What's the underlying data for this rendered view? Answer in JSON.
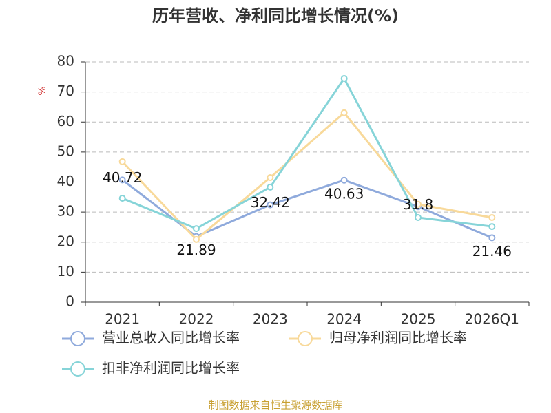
{
  "chart_data": {
    "type": "line",
    "title": "历年营收、净利同比增长情况(%)",
    "y_label": "%",
    "categories": [
      "2021",
      "2022",
      "2023",
      "2024",
      "2025",
      "2026Q1"
    ],
    "series": [
      {
        "name": "营业总收入同比增长率",
        "color": "#8faadc",
        "values": [
          40.72,
          21.89,
          32.42,
          40.63,
          31.8,
          21.46
        ],
        "show_labels": true
      },
      {
        "name": "归母净利润同比增长率",
        "color": "#f8d99a",
        "values": [
          46.8,
          20.9,
          41.5,
          63.1,
          32.6,
          28.2
        ],
        "show_labels": false
      },
      {
        "name": "扣非净利润同比增长率",
        "color": "#86d4d8",
        "values": [
          34.6,
          24.5,
          38.3,
          74.5,
          28.2,
          25.2
        ],
        "show_labels": false
      }
    ],
    "ylim": [
      0,
      80
    ],
    "yticks": [
      0,
      10,
      20,
      30,
      40,
      50,
      60,
      70,
      80
    ],
    "grid": true,
    "source": "制图数据来自恒生聚源数据库"
  }
}
